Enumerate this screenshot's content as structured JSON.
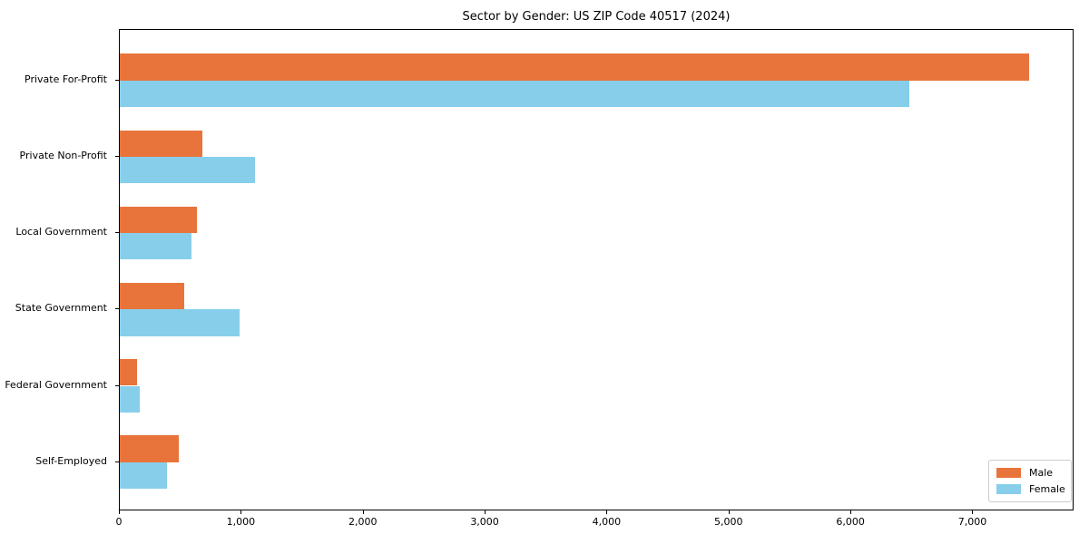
{
  "chart_data": {
    "type": "bar",
    "orientation": "horizontal",
    "title": "Sector by Gender: US ZIP Code 40517 (2024)",
    "categories": [
      "Private For-Profit",
      "Private Non-Profit",
      "Local Government",
      "State Government",
      "Federal Government",
      "Self-Employed"
    ],
    "series": [
      {
        "name": "Male",
        "color": "#e8743b",
        "values": [
          7460,
          675,
          630,
          530,
          140,
          485
        ]
      },
      {
        "name": "Female",
        "color": "#87ceeb",
        "values": [
          6475,
          1110,
          590,
          980,
          165,
          390
        ]
      }
    ],
    "xlim": [
      0,
      7830
    ],
    "xticks": [
      {
        "value": 0,
        "label": "0"
      },
      {
        "value": 1000,
        "label": "1,000"
      },
      {
        "value": 2000,
        "label": "2,000"
      },
      {
        "value": 3000,
        "label": "3,000"
      },
      {
        "value": 4000,
        "label": "4,000"
      },
      {
        "value": 5000,
        "label": "5,000"
      },
      {
        "value": 6000,
        "label": "6,000"
      },
      {
        "value": 7000,
        "label": "7,000"
      }
    ],
    "grid": false,
    "legend_position": "lower right"
  }
}
